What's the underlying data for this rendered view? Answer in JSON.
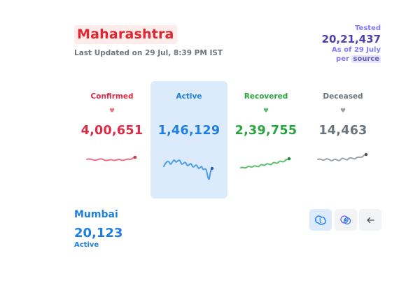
{
  "header": {
    "state_name": "Maharashtra",
    "last_updated": "Last Updated on 29 Jul, 8:39 PM IST"
  },
  "tested": {
    "label": "Tested",
    "value": "20,21,437",
    "as_of": "As of 29 July",
    "per_label": "per",
    "source_link": "source"
  },
  "levels": [
    {
      "title": "Confirmed",
      "value": "4,00,651",
      "color": "#dd2a45",
      "selected": false
    },
    {
      "title": "Active",
      "value": "1,46,129",
      "color": "#1f7fe0",
      "selected": true
    },
    {
      "title": "Recovered",
      "value": "2,39,755",
      "color": "#2aa43f",
      "selected": false
    },
    {
      "title": "Deceased",
      "value": "14,463",
      "color": "#6c757d",
      "selected": false
    }
  ],
  "heart_glyph": "♥",
  "district": {
    "name": "Mumbai",
    "value": "20,123",
    "metric": "Active"
  },
  "map_controls": [
    {
      "icon": "district-map-icon",
      "selected": true
    },
    {
      "icon": "bubble-map-icon",
      "selected": false
    },
    {
      "icon": "arrow-left-icon",
      "selected": false
    }
  ]
}
